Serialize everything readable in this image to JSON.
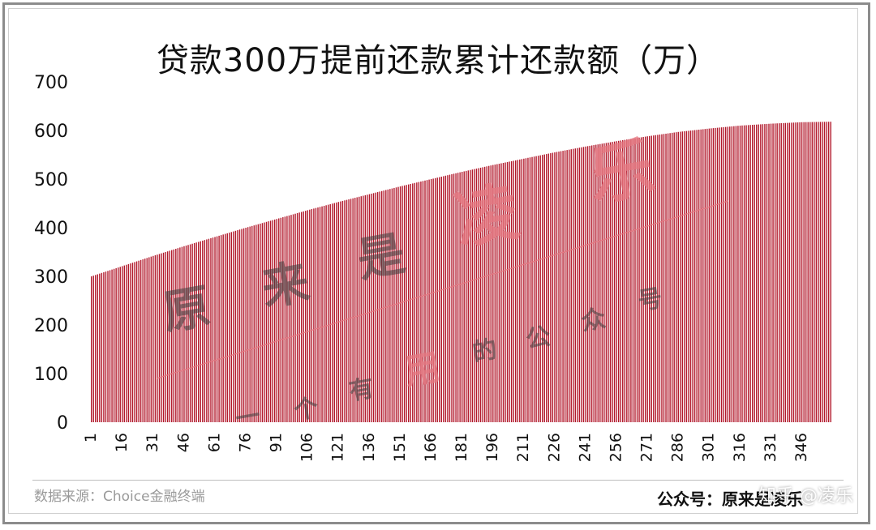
{
  "chart_data": {
    "type": "bar",
    "title": "贷款300万提前还款累计还款额（万）",
    "ylim": [
      0,
      700
    ],
    "yticks": [
      0,
      100,
      200,
      300,
      400,
      500,
      600,
      700
    ],
    "xticks": [
      1,
      16,
      31,
      46,
      61,
      76,
      91,
      106,
      121,
      136,
      151,
      166,
      181,
      196,
      211,
      226,
      241,
      256,
      271,
      286,
      301,
      316,
      331,
      346
    ],
    "x_range": [
      1,
      360
    ],
    "series": [
      {
        "values_at_xticks": [
          300,
          321,
          342,
          362,
          381,
          400,
          418,
          436,
          453,
          469,
          485,
          500,
          515,
          529,
          542,
          555,
          567,
          578,
          588,
          597,
          604,
          610,
          614,
          617
        ],
        "last_value": 618
      }
    ],
    "grid": false,
    "legend": "none",
    "bar_color": "#b2182b"
  },
  "footer": {
    "source": "数据来源：Choice金融终端",
    "account": "公众号：原来是凌乐",
    "zhihu": "知乎 @凌乐"
  },
  "watermark": {
    "big": [
      "原",
      "来",
      "是",
      "凌",
      "乐"
    ],
    "small": [
      "一",
      "个",
      "有",
      "用",
      "的",
      "公",
      "众",
      "号"
    ]
  }
}
